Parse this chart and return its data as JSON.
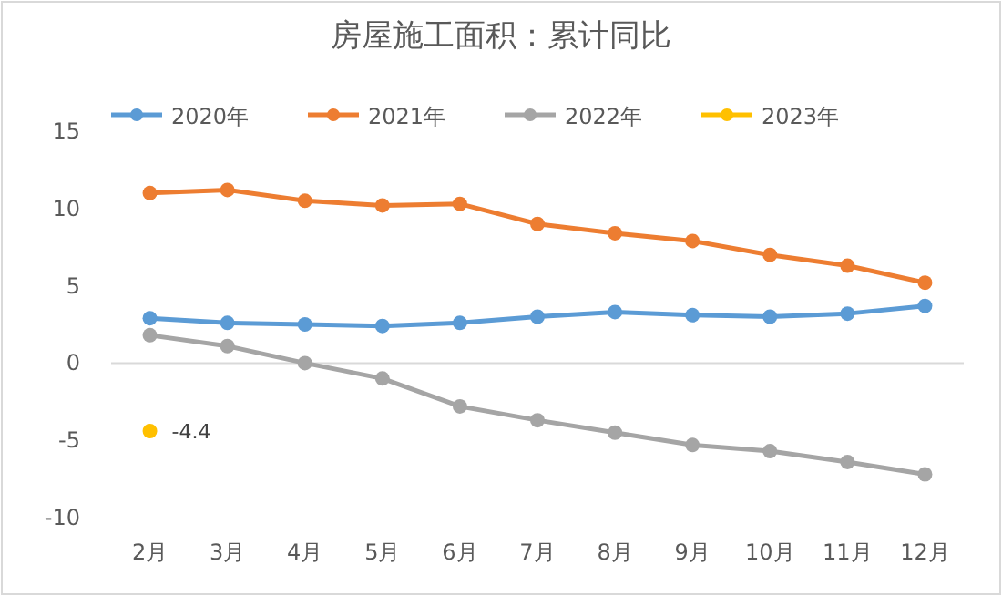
{
  "chart_data": {
    "type": "line",
    "title": "房屋施工面积：累计同比",
    "categories": [
      "2月",
      "3月",
      "4月",
      "5月",
      "6月",
      "7月",
      "8月",
      "9月",
      "10月",
      "11月",
      "12月"
    ],
    "series": [
      {
        "name": "2020年",
        "color": "#5b9bd5",
        "values": [
          2.9,
          2.6,
          2.5,
          2.4,
          2.6,
          3.0,
          3.3,
          3.1,
          3.0,
          3.2,
          3.7
        ]
      },
      {
        "name": "2021年",
        "color": "#ed7d31",
        "values": [
          11.0,
          11.2,
          10.5,
          10.2,
          10.3,
          9.0,
          8.4,
          7.9,
          7.0,
          6.3,
          5.2
        ]
      },
      {
        "name": "2022年",
        "color": "#a5a5a5",
        "values": [
          1.8,
          1.1,
          0.0,
          -1.0,
          -2.8,
          -3.7,
          -4.5,
          -5.3,
          -5.7,
          -6.4,
          -7.2
        ]
      },
      {
        "name": "2023年",
        "color": "#ffc000",
        "values": [
          -4.4,
          null,
          null,
          null,
          null,
          null,
          null,
          null,
          null,
          null,
          null
        ],
        "value_labels": [
          "-4.4",
          null,
          null,
          null,
          null,
          null,
          null,
          null,
          null,
          null,
          null
        ]
      }
    ],
    "ylim": [
      -10,
      15
    ],
    "yticks": [
      -10,
      -5,
      0,
      5,
      10,
      15
    ],
    "legend": "top",
    "marker": "circle",
    "line_style": "solid"
  }
}
